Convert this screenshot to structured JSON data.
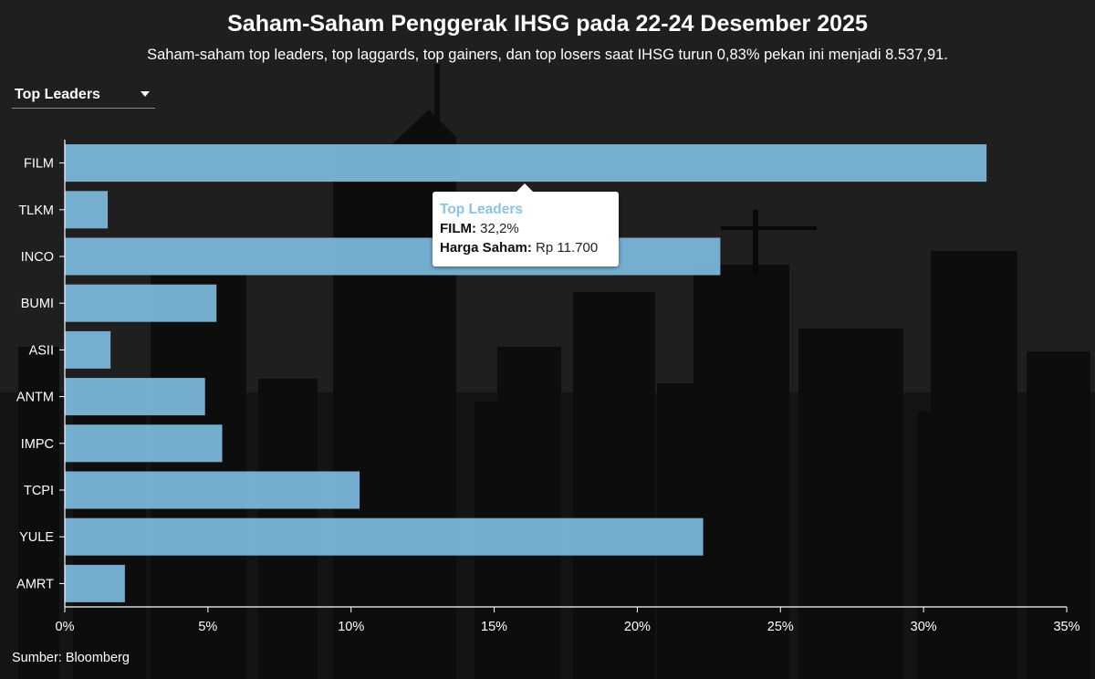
{
  "title": "Saham-Saham Penggerak IHSG pada 22-24 Desember 2025",
  "subtitle": "Saham-saham top leaders, top laggards, top gainers, dan top losers saat IHSG turun 0,83% pekan ini menjadi 8.537,91.",
  "dropdown": {
    "selected": "Top Leaders"
  },
  "tooltip": {
    "heading": "Top Leaders",
    "line1_key": "FILM:",
    "line1_value": "32,2%",
    "line2_key": "Harga Saham:",
    "line2_value": "Rp 11.700"
  },
  "source": "Sumber: Bloomberg",
  "colors": {
    "bar": "#7ab6d9",
    "axis": "#ffffff",
    "background": "#1b1b1b"
  },
  "chart_data": {
    "type": "bar",
    "orientation": "horizontal",
    "categories": [
      "FILM",
      "TLKM",
      "INCO",
      "BUMI",
      "ASII",
      "ANTM",
      "IMPC",
      "TCPI",
      "YULE",
      "AMRT"
    ],
    "values": [
      32.2,
      1.5,
      22.9,
      5.3,
      1.6,
      4.9,
      5.5,
      10.3,
      22.3,
      2.1
    ],
    "xlim": [
      0,
      35
    ],
    "xticks": [
      0,
      5,
      10,
      15,
      20,
      25,
      30,
      35
    ],
    "xtick_labels": [
      "0%",
      "5%",
      "10%",
      "15%",
      "20%",
      "25%",
      "30%",
      "35%"
    ],
    "grid": false
  }
}
